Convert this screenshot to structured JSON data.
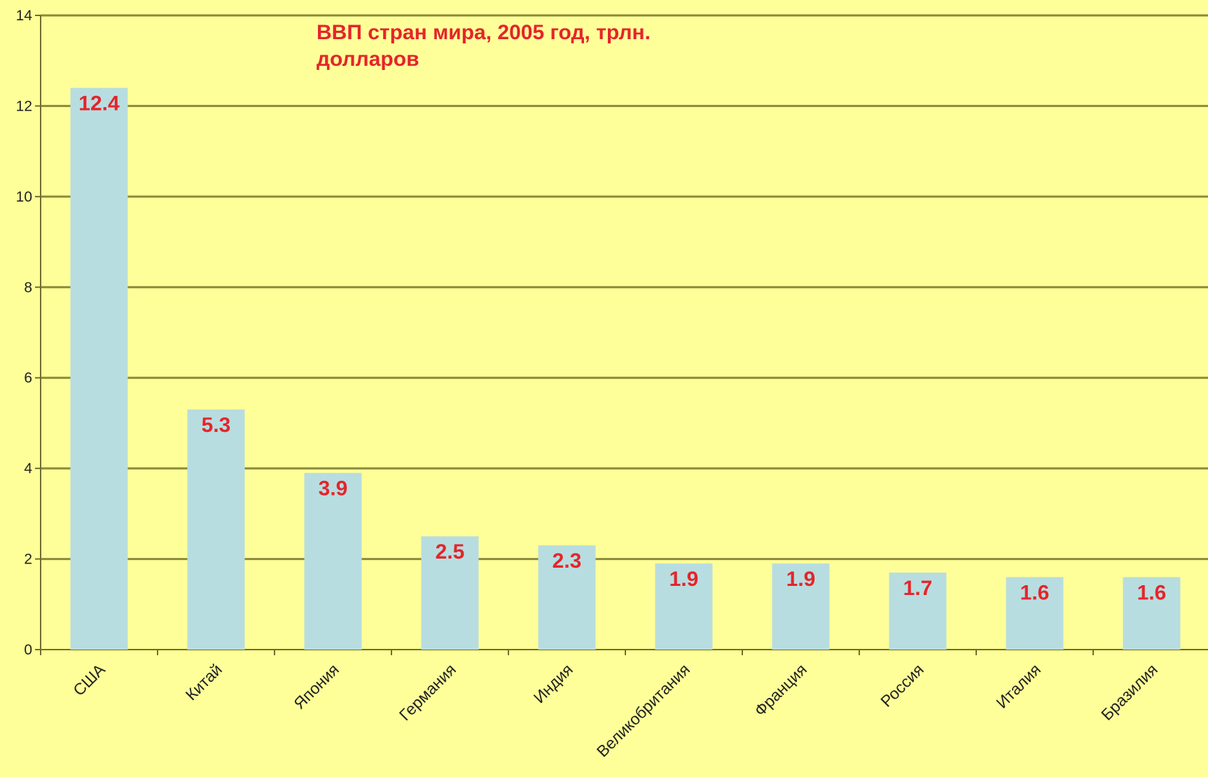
{
  "chart_data": {
    "type": "bar",
    "title": "ВВП стран мира, 2005 год, трлн. долларов",
    "xlabel": "",
    "ylabel": "",
    "categories": [
      "США",
      "Китай",
      "Япония",
      "Германия",
      "Индия",
      "Великобритания",
      "Франция",
      "Россия",
      "Италия",
      "Бразилия"
    ],
    "values": [
      12.4,
      5.3,
      3.9,
      2.5,
      2.3,
      1.9,
      1.9,
      1.7,
      1.6,
      1.6
    ],
    "data_labels": [
      "12.4",
      "5.3",
      "3.9",
      "2.5",
      "2.3",
      "1.9",
      "1.9",
      "1.7",
      "1.6",
      "1.6"
    ],
    "ylim": [
      0,
      14
    ],
    "yticks": [
      0,
      2,
      4,
      6,
      8,
      10,
      12,
      14
    ],
    "grid": true,
    "legend": "none"
  },
  "colors": {
    "background": "#ffff99",
    "bar": "#b8dde0",
    "grid": "#8a8a3a",
    "axis": "#6e6e2e",
    "data_label": "#e4252b",
    "title": "#e4252b"
  }
}
